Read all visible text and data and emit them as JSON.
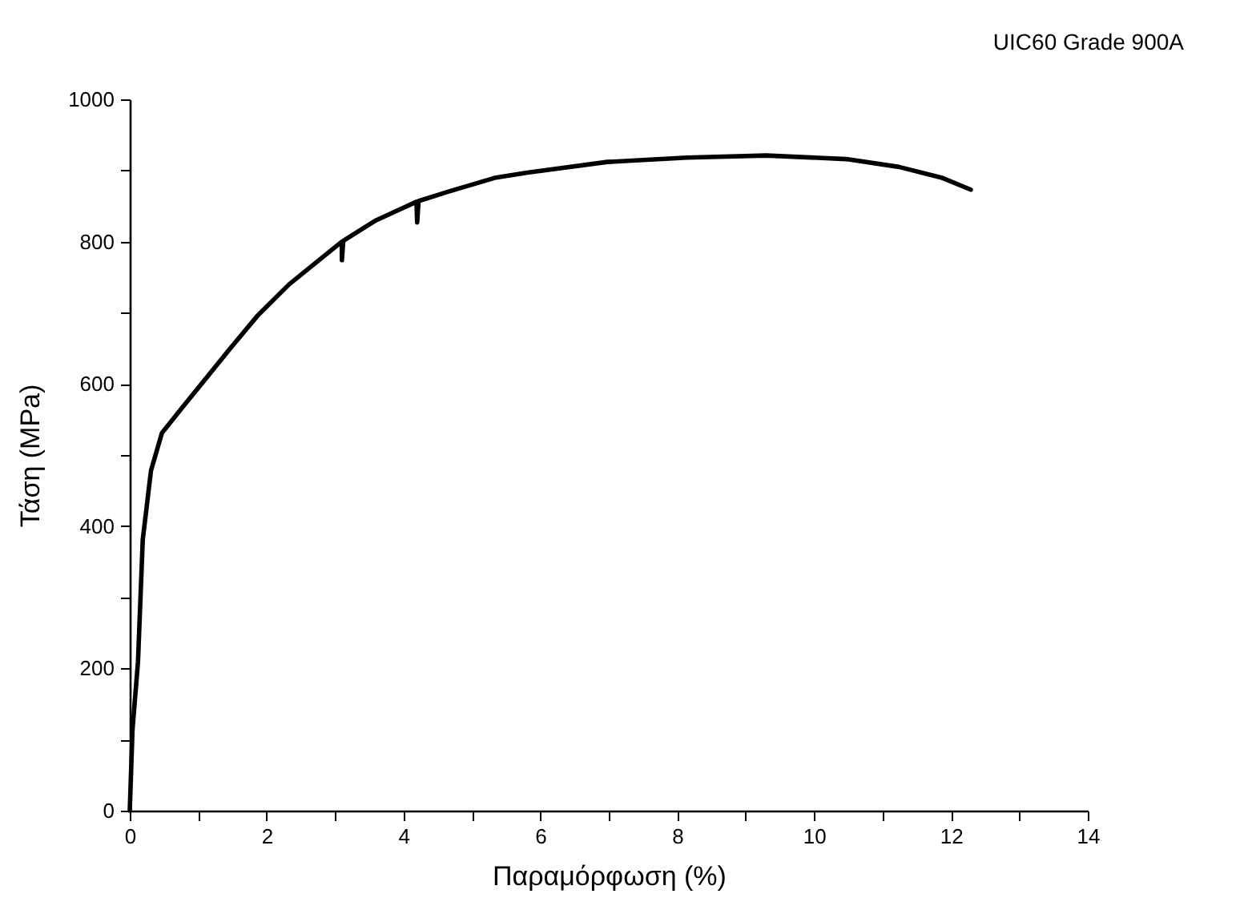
{
  "chart_data": {
    "type": "line",
    "title": "UIC60 Grade 900A",
    "xlabel": "Παραμόρφωση (%)",
    "ylabel": "Τάση (MPa)",
    "x": [
      0,
      0.04,
      0.12,
      0.19,
      0.31,
      0.47,
      0.77,
      1.47,
      1.86,
      2.33,
      3.1,
      3.1,
      3.12,
      3.6,
      4.19,
      4.2,
      4.22,
      4.65,
      5.35,
      5.81,
      6.98,
      8.14,
      9.3,
      10.47,
      11.24,
      11.86,
      12.29
    ],
    "series": [
      {
        "color": "#000000",
        "values": [
          0,
          114,
          209,
          381,
          478,
          531,
          567,
          650,
          695,
          740,
          800,
          774,
          801,
          830,
          856,
          827,
          857,
          870,
          890,
          897,
          912,
          918,
          921,
          916,
          905,
          890,
          873
        ]
      }
    ],
    "xlim": [
      0,
      14
    ],
    "ylim": [
      0,
      1000
    ],
    "xticks": [
      0,
      {
        "value": 1,
        "label": null
      },
      2,
      {
        "value": 3,
        "label": null
      },
      4,
      {
        "value": 5,
        "label": null
      },
      6,
      {
        "value": 7,
        "label": null
      },
      8,
      {
        "value": 9,
        "label": null
      },
      10,
      {
        "value": 11,
        "label": null
      },
      12,
      {
        "value": 13,
        "label": null
      },
      14
    ],
    "yticks": [
      0,
      {
        "value": 100,
        "label": null
      },
      200,
      {
        "value": 300,
        "label": null
      },
      400,
      {
        "value": 500,
        "label": null
      },
      600,
      {
        "value": 700,
        "label": null
      },
      800,
      {
        "value": 900,
        "label": null
      },
      1000
    ],
    "grid": false,
    "marker": "none",
    "line_style": "solid"
  }
}
